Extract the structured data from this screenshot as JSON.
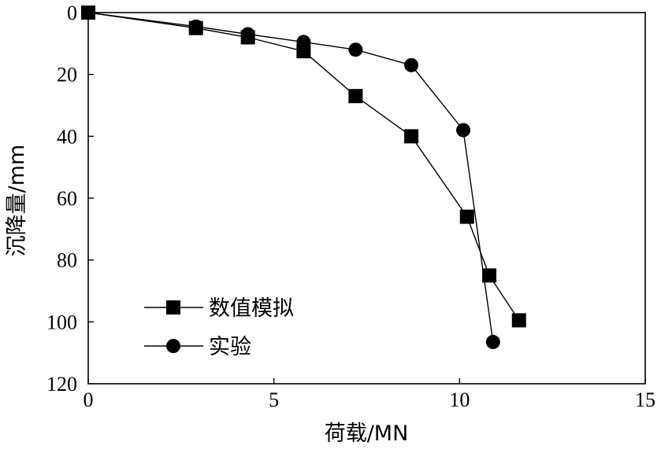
{
  "chart_data": {
    "type": "line",
    "xlabel": "荷载/MN",
    "ylabel": "沉降量/mm",
    "xlim": [
      0,
      15
    ],
    "ylim": [
      0,
      120
    ],
    "y_inverted": true,
    "xticks": [
      "0",
      "5",
      "10",
      "15"
    ],
    "yticks": [
      "0",
      "20",
      "40",
      "60",
      "80",
      "100",
      "120"
    ],
    "grid": false,
    "legend_position": "bottom-left",
    "series": [
      {
        "name": "数值模拟",
        "marker": "square",
        "color": "#000000",
        "x": [
          0,
          2.9,
          4.3,
          5.8,
          7.2,
          8.7,
          10.2,
          10.8,
          11.6
        ],
        "y": [
          0,
          5,
          8,
          12.5,
          27,
          40,
          66,
          85,
          99.5
        ]
      },
      {
        "name": "实验",
        "marker": "circle",
        "color": "#000000",
        "x": [
          0,
          2.9,
          4.3,
          5.8,
          7.2,
          8.7,
          10.1,
          10.9
        ],
        "y": [
          0,
          4.5,
          7,
          9.5,
          12,
          17,
          38,
          106.5
        ]
      }
    ]
  }
}
